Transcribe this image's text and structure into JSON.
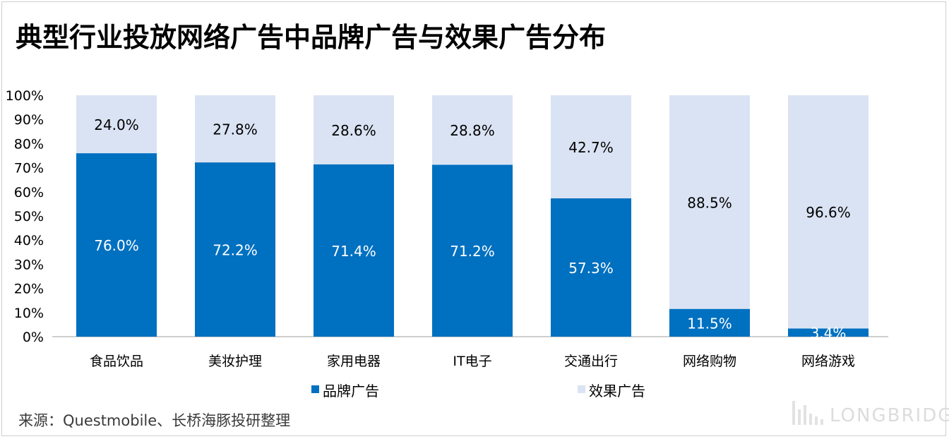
{
  "title": "典型行业投放网络广告中品牌广告与效果广告分布",
  "source": "来源：Questmobile、长桥海豚投研整理",
  "watermark": {
    "logo": "LONGBRIDGE"
  },
  "colors": {
    "brand": "#0070C0",
    "effect": "#DAE3F3",
    "axis": "#bfbfbf",
    "label_dark": "#000000",
    "label_light": "#ffffff"
  },
  "chart_data": {
    "type": "bar",
    "stacked": true,
    "categories": [
      "食品饮品",
      "美妆护理",
      "家用电器",
      "IT电子",
      "交通出行",
      "网络购物",
      "网络游戏"
    ],
    "series": [
      {
        "name": "品牌广告",
        "values": [
          76.0,
          72.2,
          71.4,
          71.2,
          57.3,
          11.5,
          3.4
        ],
        "labels": [
          "76.0%",
          "72.2%",
          "71.4%",
          "71.2%",
          "57.3%",
          "11.5%",
          "3.4%"
        ]
      },
      {
        "name": "效果广告",
        "values": [
          24.0,
          27.8,
          28.6,
          28.8,
          42.7,
          88.5,
          96.6
        ],
        "labels": [
          "24.0%",
          "27.8%",
          "28.6%",
          "28.8%",
          "42.7%",
          "88.5%",
          "96.6%"
        ]
      }
    ],
    "ylim": [
      0,
      100
    ],
    "yticks": [
      "0%",
      "10%",
      "20%",
      "30%",
      "40%",
      "50%",
      "60%",
      "70%",
      "80%",
      "90%",
      "100%"
    ],
    "legend_position": "bottom",
    "grid": false
  }
}
